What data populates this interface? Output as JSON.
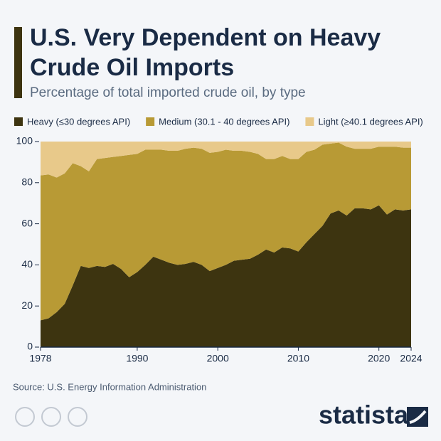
{
  "chart_data": {
    "type": "stacked-area",
    "title": "U.S. Very Dependent on Heavy Crude Oil Imports",
    "subtitle": "Percentage of total imported crude oil, by type",
    "source": "Source: U.S. Energy Information Administration",
    "x": [
      1978,
      1979,
      1980,
      1981,
      1982,
      1983,
      1984,
      1985,
      1986,
      1987,
      1988,
      1989,
      1990,
      1991,
      1992,
      1993,
      1994,
      1995,
      1996,
      1997,
      1998,
      1999,
      2000,
      2001,
      2002,
      2003,
      2004,
      2005,
      2006,
      2007,
      2008,
      2009,
      2010,
      2011,
      2012,
      2013,
      2014,
      2015,
      2016,
      2017,
      2018,
      2019,
      2020,
      2021,
      2022,
      2023,
      2024
    ],
    "series": [
      {
        "name": "Heavy (≤30 degrees API)",
        "color": "#3d3410",
        "values": [
          13,
          14,
          17,
          21,
          30,
          39.5,
          38.5,
          39.5,
          39,
          40.5,
          38,
          34,
          36.5,
          40,
          44,
          42.5,
          41,
          40,
          40.5,
          41.5,
          40,
          37,
          38.5,
          40,
          42,
          42.5,
          43,
          45,
          47.5,
          46,
          48.5,
          48,
          46.5,
          51,
          55,
          59,
          65,
          66.5,
          64,
          67.5,
          67.5,
          67,
          69,
          64.5,
          67,
          66.5,
          67
        ]
      },
      {
        "name": "Medium (30.1 - 40 degrees API)",
        "color": "#b89a35",
        "values": [
          70.5,
          70,
          65.5,
          63.5,
          59.5,
          48.5,
          47,
          52,
          53,
          52,
          55,
          59.5,
          57.5,
          56,
          52,
          53.5,
          54.5,
          55.5,
          56,
          55.5,
          56.5,
          57.5,
          56.5,
          56,
          53.5,
          53,
          52,
          49,
          44,
          45.5,
          44.5,
          43.5,
          45,
          44,
          41,
          39.5,
          34,
          33,
          33.5,
          29,
          29,
          29.5,
          28.5,
          33,
          30.5,
          30.5,
          30
        ]
      },
      {
        "name": "Light (≥40.1 degrees API)",
        "color": "#e8c98a",
        "values": [
          16.5,
          16,
          17.5,
          15.5,
          10.5,
          12,
          14.5,
          8.5,
          8,
          7.5,
          7,
          6.5,
          6,
          4,
          4,
          4,
          4.5,
          4.5,
          3.5,
          3,
          3.5,
          5.5,
          5,
          4,
          4.5,
          4.5,
          5,
          6,
          8.5,
          8.5,
          7,
          8.5,
          8.5,
          5,
          4,
          1.5,
          1,
          0.5,
          2.5,
          3.5,
          3.5,
          3.5,
          2.5,
          2.5,
          2.5,
          3,
          3
        ]
      }
    ],
    "xlim": [
      1978,
      2024
    ],
    "xticks": [
      1978,
      1990,
      2000,
      2010,
      2020,
      2024
    ],
    "ylim": [
      0,
      100
    ],
    "yticks": [
      0,
      20,
      40,
      60,
      80,
      100
    ],
    "grid": false,
    "brand": "statista"
  }
}
